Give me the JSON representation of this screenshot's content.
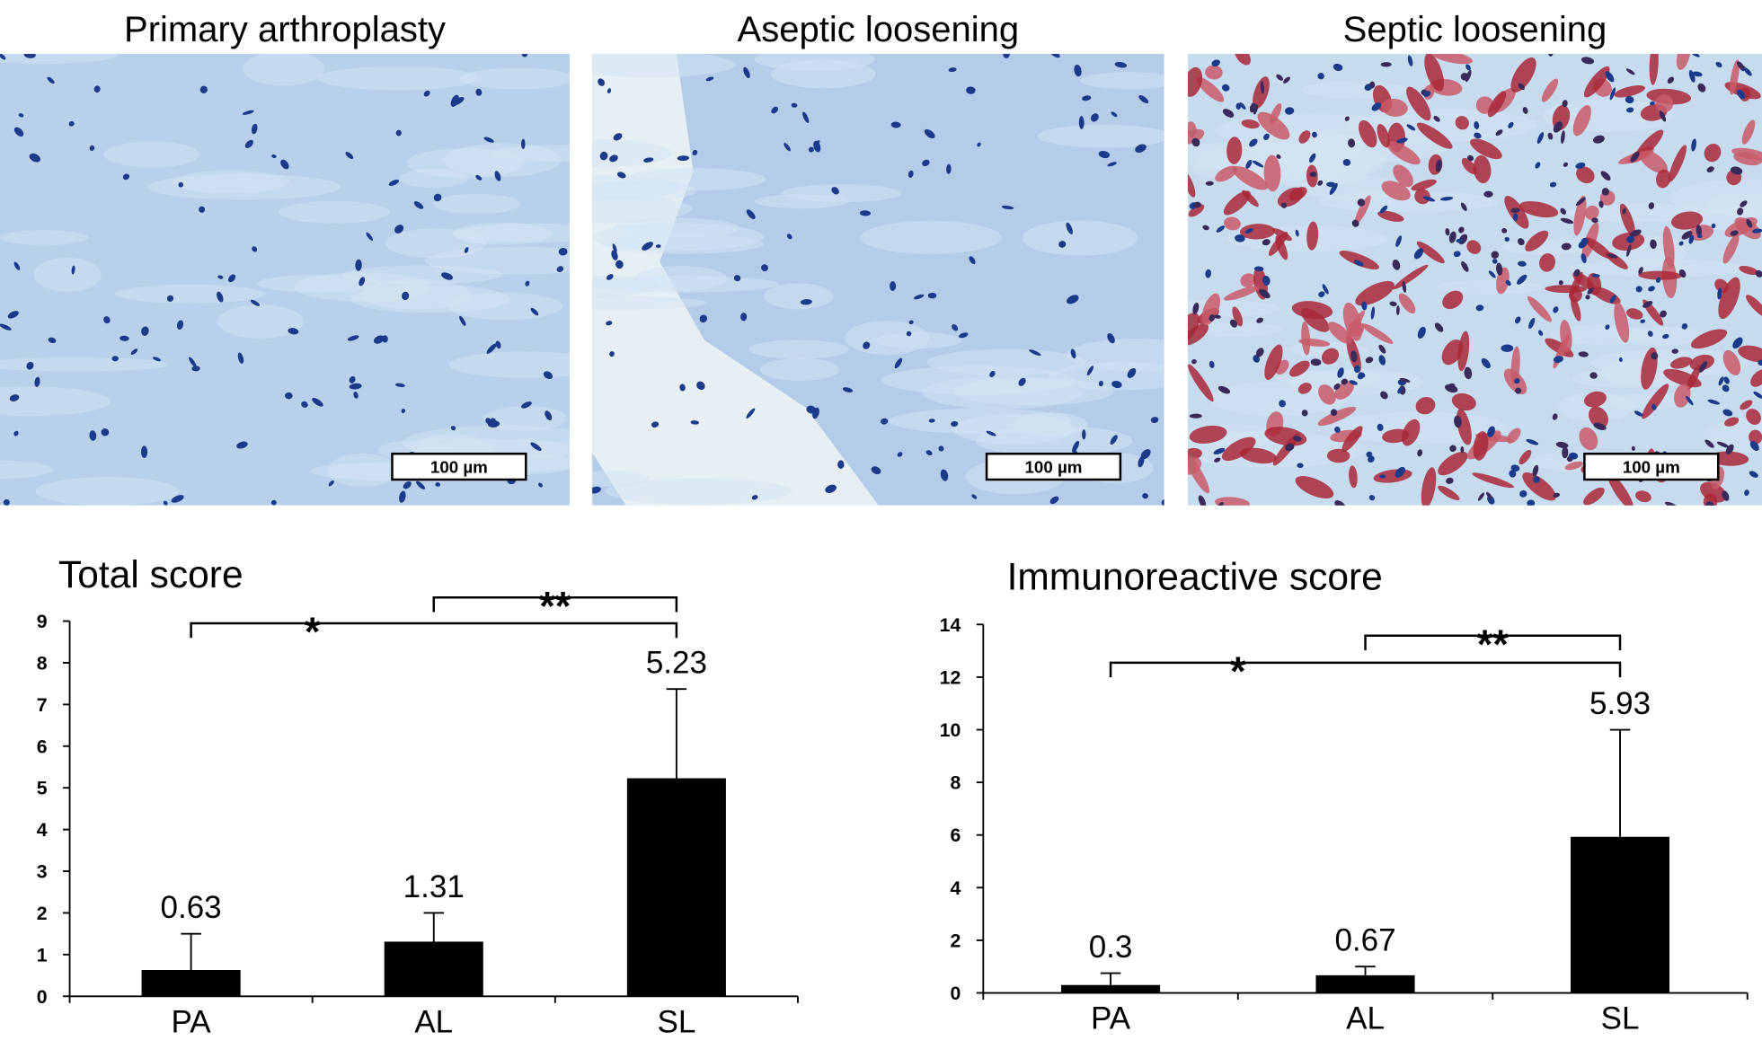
{
  "images": [
    {
      "title": "Primary arthroplasty",
      "scale_bar": "100 µm"
    },
    {
      "title": "Aseptic loosening",
      "scale_bar": "100 µm"
    },
    {
      "title": "Septic loosening",
      "scale_bar": "100 µm"
    }
  ],
  "chart_data": [
    {
      "type": "bar",
      "title": "Total score",
      "categories": [
        "PA",
        "AL",
        "SL"
      ],
      "values": [
        0.63,
        1.31,
        5.23
      ],
      "errors": [
        0.87,
        0.69,
        2.14
      ],
      "color": "#000000",
      "ylim": [
        0,
        9
      ],
      "yticks": [
        0,
        1,
        2,
        3,
        4,
        5,
        6,
        7,
        8,
        9
      ],
      "annotations": [
        {
          "text": "**",
          "between": [
            1,
            2
          ]
        },
        {
          "text": "*",
          "between": [
            0,
            2
          ]
        }
      ]
    },
    {
      "type": "bar",
      "title": "Immunoreactive score",
      "categories": [
        "PA",
        "AL",
        "SL"
      ],
      "values": [
        0.3,
        0.67,
        5.93
      ],
      "errors": [
        0.45,
        0.33,
        4.07
      ],
      "color": "#000000",
      "ylim": [
        0,
        14
      ],
      "yticks": [
        0,
        2,
        4,
        6,
        8,
        10,
        12,
        14
      ],
      "annotations": [
        {
          "text": "**",
          "between": [
            1,
            2
          ]
        },
        {
          "text": "*",
          "between": [
            0,
            2
          ]
        }
      ]
    }
  ]
}
